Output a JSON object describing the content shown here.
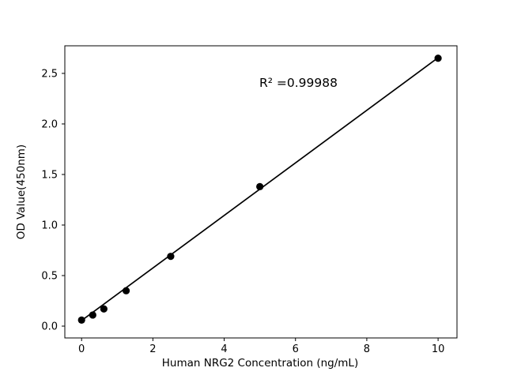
{
  "chart_data": {
    "type": "scatter",
    "title": "",
    "annotation": "R² =0.99988",
    "xlabel": "Human NRG2 Concentration (ng/mL)",
    "ylabel": "OD Value(450nm)",
    "x": [
      0,
      0.313,
      0.625,
      1.25,
      2.5,
      5,
      10
    ],
    "y": [
      0.06,
      0.11,
      0.17,
      0.35,
      0.69,
      1.38,
      2.65
    ],
    "fit_line": {
      "x1": 0,
      "y1": 0.055,
      "x2": 10,
      "y2": 2.655
    },
    "xticks": [
      "0",
      "2",
      "4",
      "6",
      "8",
      "10"
    ],
    "xtick_values": [
      0,
      2,
      4,
      6,
      8,
      10
    ],
    "yticks": [
      "0.0",
      "0.5",
      "1.0",
      "1.5",
      "2.0",
      "2.5"
    ],
    "ytick_values": [
      0.0,
      0.5,
      1.0,
      1.5,
      2.0,
      2.5
    ],
    "xlim": [
      -0.47,
      10.53
    ],
    "ylim": [
      -0.117,
      2.773
    ],
    "grid": false,
    "legend": "none",
    "marker_color": "#000000",
    "line_color": "#000000",
    "axis_color": "#000000",
    "background": "#ffffff"
  }
}
